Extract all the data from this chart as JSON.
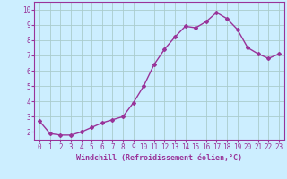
{
  "x": [
    0,
    1,
    2,
    3,
    4,
    5,
    6,
    7,
    8,
    9,
    10,
    11,
    12,
    13,
    14,
    15,
    16,
    17,
    18,
    19,
    20,
    21,
    22,
    23
  ],
  "y": [
    2.7,
    1.9,
    1.8,
    1.8,
    2.0,
    2.3,
    2.6,
    2.8,
    3.0,
    3.9,
    5.0,
    6.4,
    7.4,
    8.2,
    8.9,
    8.8,
    9.2,
    9.8,
    9.4,
    8.7,
    7.5,
    7.1,
    6.8,
    7.1
  ],
  "line_color": "#993399",
  "marker": "D",
  "marker_size": 2,
  "bg_color": "#cceeff",
  "grid_color": "#aacccc",
  "xlabel": "Windchill (Refroidissement éolien,°C)",
  "ylabel_ticks": [
    2,
    3,
    4,
    5,
    6,
    7,
    8,
    9,
    10
  ],
  "xlim": [
    -0.5,
    23.5
  ],
  "ylim": [
    1.5,
    10.5
  ],
  "xticks": [
    0,
    1,
    2,
    3,
    4,
    5,
    6,
    7,
    8,
    9,
    10,
    11,
    12,
    13,
    14,
    15,
    16,
    17,
    18,
    19,
    20,
    21,
    22,
    23
  ],
  "line_width": 1.0,
  "label_fontsize": 6.0,
  "tick_fontsize": 5.5
}
